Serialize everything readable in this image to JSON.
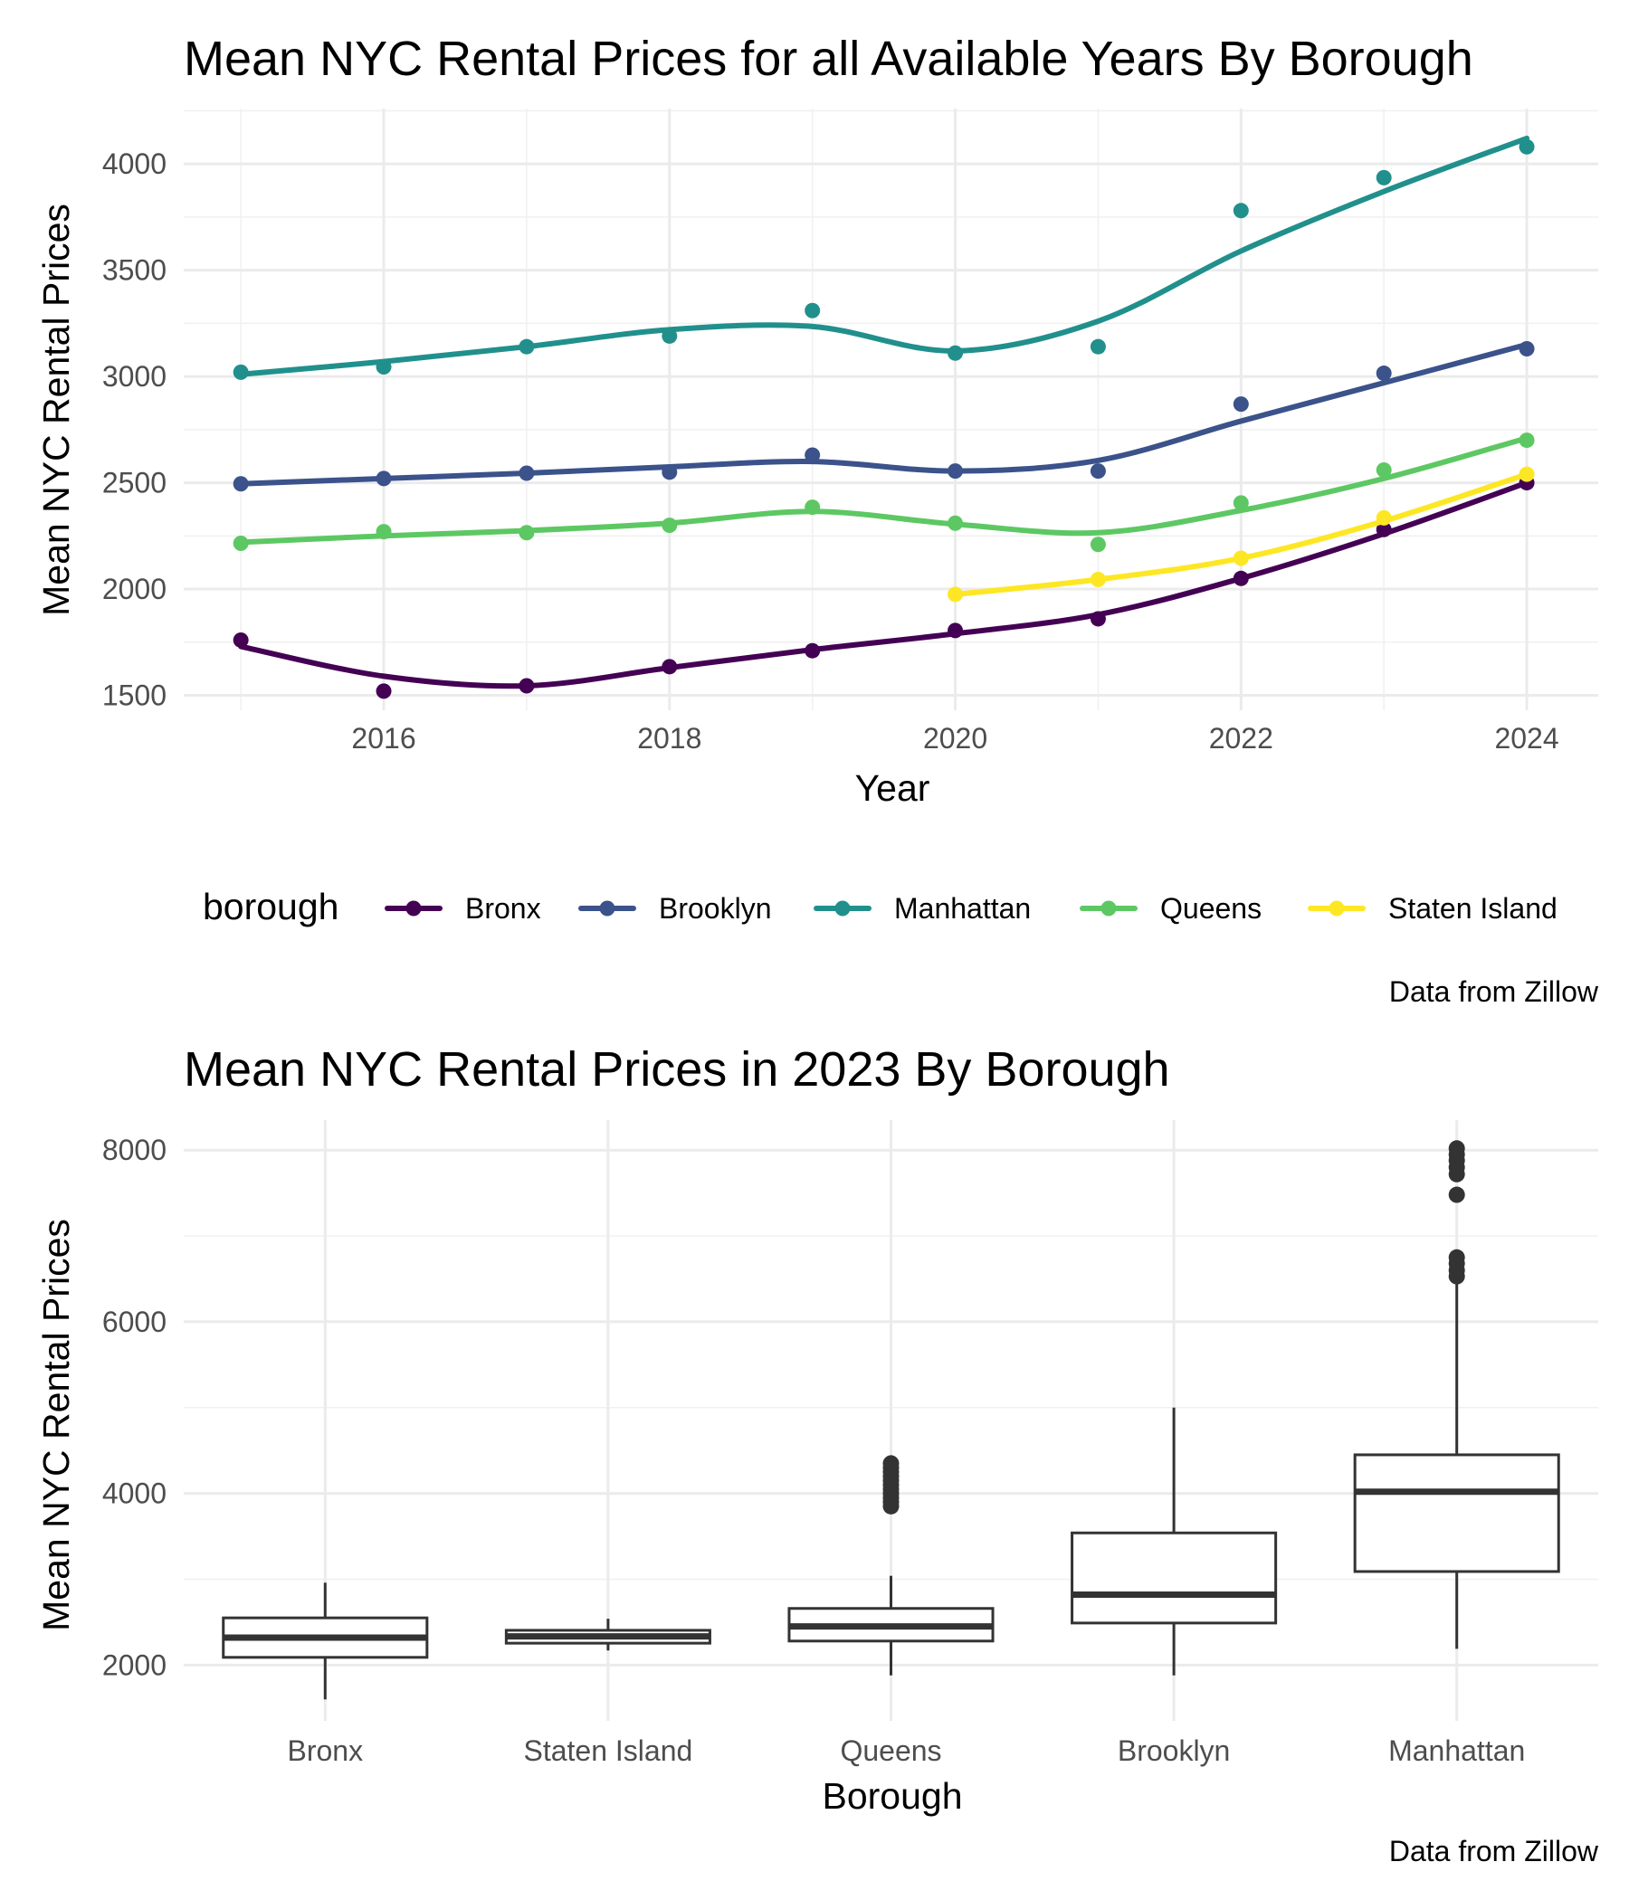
{
  "chart_data": [
    {
      "type": "line",
      "title": "Mean NYC Rental Prices for all Available Years By Borough",
      "xlabel": "Year",
      "ylabel": "Mean NYC Rental Prices",
      "xlim": [
        2014.6,
        2024.5
      ],
      "ylim": [
        1430,
        4260
      ],
      "x_ticks": [
        2016,
        2018,
        2020,
        2022,
        2024
      ],
      "y_ticks": [
        1500,
        2000,
        2500,
        3000,
        3500,
        4000
      ],
      "grid": true,
      "legend": {
        "title": "borough",
        "position": "bottom"
      },
      "caption": "Data from Zillow",
      "series": [
        {
          "name": "Bronx",
          "color": "#440154",
          "points": [
            [
              2015,
              1760
            ],
            [
              2016,
              1520
            ],
            [
              2017,
              1545
            ],
            [
              2018,
              1635
            ],
            [
              2019,
              1710
            ],
            [
              2020,
              1805
            ],
            [
              2021,
              1860
            ],
            [
              2022,
              2050
            ],
            [
              2023,
              2280
            ],
            [
              2024,
              2500
            ]
          ],
          "smooth": [
            [
              2015,
              1730
            ],
            [
              2016,
              1590
            ],
            [
              2017,
              1545
            ],
            [
              2018,
              1630
            ],
            [
              2019,
              1715
            ],
            [
              2020,
              1790
            ],
            [
              2021,
              1880
            ],
            [
              2022,
              2050
            ],
            [
              2023,
              2260
            ],
            [
              2024,
              2500
            ]
          ]
        },
        {
          "name": "Brooklyn",
          "color": "#3b528b",
          "points": [
            [
              2015,
              2495
            ],
            [
              2016,
              2520
            ],
            [
              2017,
              2545
            ],
            [
              2018,
              2550
            ],
            [
              2019,
              2630
            ],
            [
              2020,
              2555
            ],
            [
              2021,
              2555
            ],
            [
              2022,
              2870
            ],
            [
              2023,
              3015
            ],
            [
              2024,
              3130
            ]
          ],
          "smooth": [
            [
              2015,
              2495
            ],
            [
              2016,
              2520
            ],
            [
              2017,
              2545
            ],
            [
              2018,
              2575
            ],
            [
              2019,
              2600
            ],
            [
              2020,
              2555
            ],
            [
              2021,
              2605
            ],
            [
              2022,
              2790
            ],
            [
              2023,
              2970
            ],
            [
              2024,
              3150
            ]
          ]
        },
        {
          "name": "Manhattan",
          "color": "#21908c",
          "points": [
            [
              2015,
              3020
            ],
            [
              2016,
              3045
            ],
            [
              2017,
              3140
            ],
            [
              2018,
              3190
            ],
            [
              2019,
              3310
            ],
            [
              2020,
              3110
            ],
            [
              2021,
              3140
            ],
            [
              2022,
              3780
            ],
            [
              2023,
              3935
            ],
            [
              2024,
              4080
            ]
          ],
          "smooth": [
            [
              2015,
              3010
            ],
            [
              2016,
              3070
            ],
            [
              2017,
              3140
            ],
            [
              2018,
              3220
            ],
            [
              2019,
              3235
            ],
            [
              2020,
              3120
            ],
            [
              2021,
              3260
            ],
            [
              2022,
              3590
            ],
            [
              2023,
              3870
            ],
            [
              2024,
              4120
            ]
          ]
        },
        {
          "name": "Queens",
          "color": "#5dc863",
          "points": [
            [
              2015,
              2215
            ],
            [
              2016,
              2270
            ],
            [
              2017,
              2265
            ],
            [
              2018,
              2300
            ],
            [
              2019,
              2385
            ],
            [
              2020,
              2310
            ],
            [
              2021,
              2210
            ],
            [
              2022,
              2405
            ],
            [
              2023,
              2560
            ],
            [
              2024,
              2700
            ]
          ],
          "smooth": [
            [
              2015,
              2220
            ],
            [
              2016,
              2250
            ],
            [
              2017,
              2275
            ],
            [
              2018,
              2310
            ],
            [
              2019,
              2365
            ],
            [
              2020,
              2305
            ],
            [
              2021,
              2265
            ],
            [
              2022,
              2370
            ],
            [
              2023,
              2520
            ],
            [
              2024,
              2710
            ]
          ]
        },
        {
          "name": "Staten Island",
          "color": "#fde725",
          "points": [
            [
              2020,
              1975
            ],
            [
              2021,
              2045
            ],
            [
              2022,
              2145
            ],
            [
              2023,
              2335
            ],
            [
              2024,
              2540
            ]
          ],
          "smooth": [
            [
              2020,
              1975
            ],
            [
              2021,
              2045
            ],
            [
              2022,
              2145
            ],
            [
              2023,
              2320
            ],
            [
              2024,
              2540
            ]
          ]
        }
      ]
    },
    {
      "type": "box",
      "title": "Mean NYC Rental Prices in 2023 By Borough",
      "xlabel": "Borough",
      "ylabel": "Mean NYC Rental Prices",
      "ylim": [
        1350,
        8350
      ],
      "y_ticks": [
        2000,
        4000,
        6000,
        8000
      ],
      "grid": true,
      "caption": "Data from Zillow",
      "categories": [
        "Bronx",
        "Staten Island",
        "Queens",
        "Brooklyn",
        "Manhattan"
      ],
      "boxes": [
        {
          "category": "Bronx",
          "min": 1600,
          "q1": 2090,
          "median": 2320,
          "q3": 2550,
          "max": 2960,
          "outliers": []
        },
        {
          "category": "Staten Island",
          "min": 2170,
          "q1": 2255,
          "median": 2335,
          "q3": 2405,
          "max": 2540,
          "outliers": []
        },
        {
          "category": "Queens",
          "min": 1880,
          "q1": 2280,
          "median": 2450,
          "q3": 2660,
          "max": 3040,
          "outliers": [
            3850,
            3900,
            3950,
            4000,
            4050,
            4100,
            4150,
            4200,
            4250,
            4300,
            4350
          ]
        },
        {
          "category": "Brooklyn",
          "min": 1880,
          "q1": 2490,
          "median": 2820,
          "q3": 3540,
          "max": 5000,
          "outliers": []
        },
        {
          "category": "Manhattan",
          "min": 2190,
          "q1": 3090,
          "median": 4020,
          "q3": 4450,
          "max": 6500,
          "outliers": [
            6530,
            6600,
            6680,
            6750,
            7480,
            7720,
            7800,
            7880,
            7950,
            8020
          ]
        }
      ]
    }
  ]
}
